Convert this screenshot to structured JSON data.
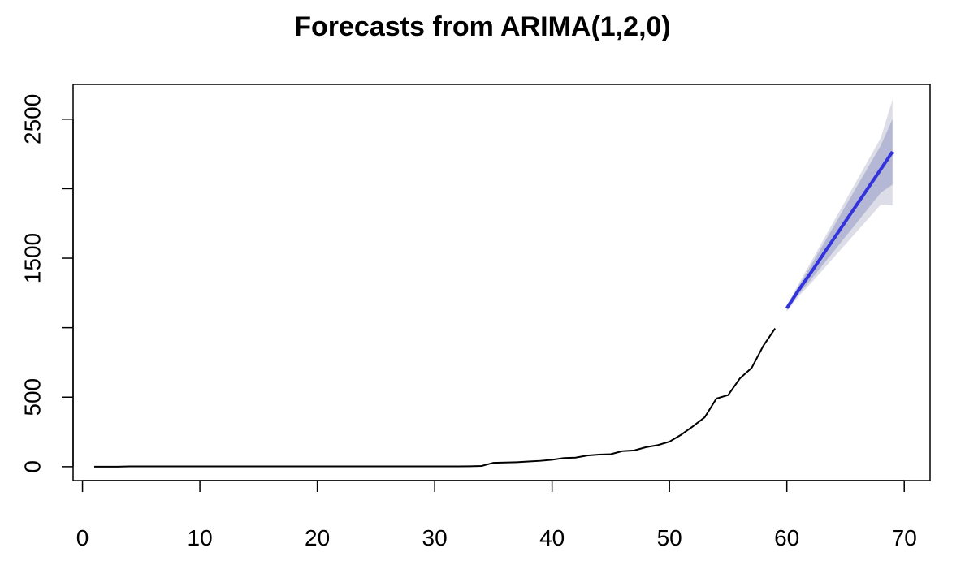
{
  "chart_data": {
    "type": "line",
    "title": "Forecasts from ARIMA(1,2,0)",
    "xlabel": "",
    "ylabel": "",
    "xlim": [
      -0.8,
      72.2
    ],
    "ylim": [
      -100,
      2750
    ],
    "xticks": [
      0,
      10,
      20,
      30,
      40,
      50,
      60,
      70
    ],
    "yticks": [
      0,
      500,
      1000,
      1500,
      2000,
      2500
    ],
    "ytick_labels_shown": [
      "0",
      "500",
      "1500",
      "2500"
    ],
    "grid": false,
    "legend": null,
    "colors": {
      "history": "#000000",
      "forecast": "#3333dd",
      "band80": "#b5b8d4",
      "band95": "#dcdde6"
    },
    "history": {
      "x": [
        1,
        2,
        3,
        4,
        5,
        6,
        7,
        8,
        9,
        10,
        11,
        12,
        13,
        14,
        15,
        16,
        17,
        18,
        19,
        20,
        21,
        22,
        23,
        24,
        25,
        26,
        27,
        28,
        29,
        30,
        31,
        32,
        33,
        34,
        35,
        36,
        37,
        38,
        39,
        40,
        41,
        42,
        43,
        44,
        45,
        46,
        47,
        48,
        49,
        50,
        51,
        52,
        53,
        54,
        55,
        56,
        57,
        58,
        59
      ],
      "y": [
        0,
        0,
        0,
        2,
        2,
        2,
        2,
        2,
        2,
        2,
        2,
        2,
        2,
        2,
        2,
        2,
        2,
        2,
        2,
        2,
        2,
        2,
        2,
        2,
        2,
        2,
        2,
        2,
        2,
        2,
        2,
        2,
        3,
        5,
        28,
        30,
        32,
        37,
        42,
        50,
        62,
        65,
        80,
        87,
        90,
        112,
        117,
        140,
        155,
        180,
        230,
        290,
        355,
        490,
        515,
        635,
        710,
        870,
        995
      ]
    },
    "forecast": {
      "x": [
        60,
        61,
        62,
        63,
        64,
        65,
        66,
        67,
        68,
        69
      ],
      "mean": [
        1140,
        1270,
        1390,
        1515,
        1640,
        1765,
        1890,
        2015,
        2140,
        2265
      ],
      "lo80": [
        1125,
        1240,
        1340,
        1445,
        1550,
        1655,
        1760,
        1865,
        1970,
        2030
      ],
      "hi80": [
        1155,
        1300,
        1440,
        1585,
        1730,
        1875,
        2020,
        2165,
        2310,
        2500
      ],
      "lo95": [
        1115,
        1225,
        1315,
        1410,
        1505,
        1600,
        1695,
        1790,
        1885,
        1880
      ],
      "hi95": [
        1165,
        1315,
        1465,
        1615,
        1765,
        1915,
        2065,
        2215,
        2365,
        2640
      ]
    }
  }
}
